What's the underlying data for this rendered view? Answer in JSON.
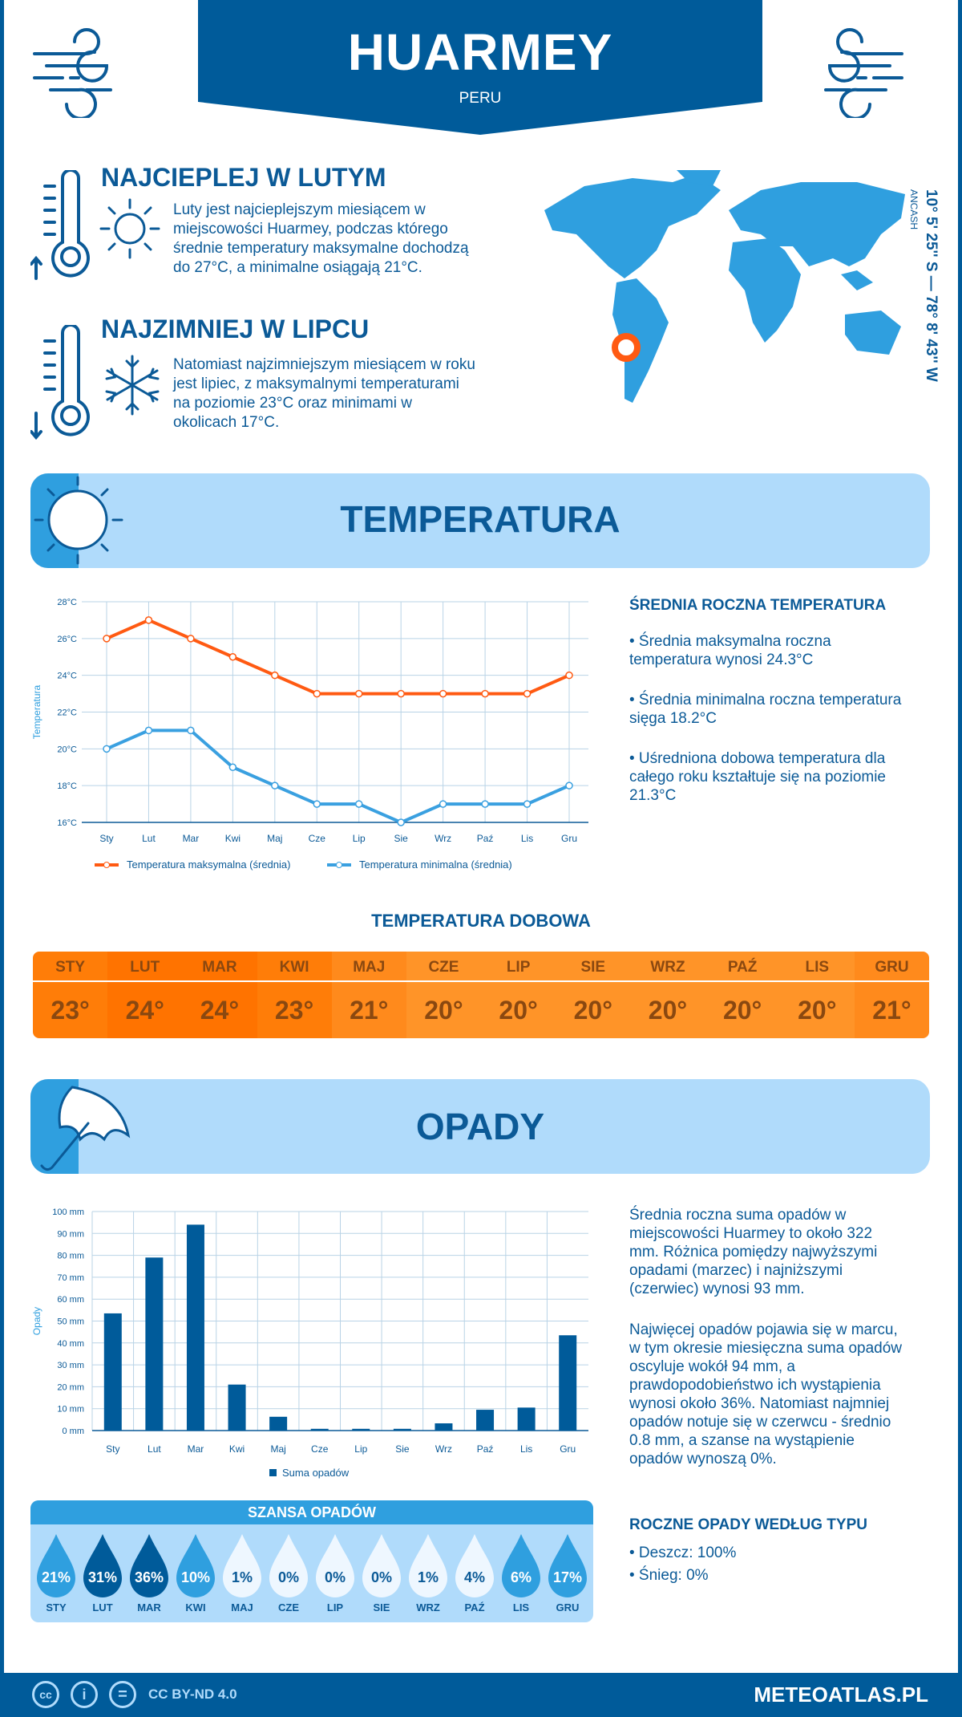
{
  "header": {
    "title": "HUARMEY",
    "country": "PERU"
  },
  "coordinates": {
    "text": "10° 5' 25'' S — 78° 8' 43'' W",
    "region": "ANCASH"
  },
  "warmest": {
    "title": "NAJCIEPLEJ W LUTYM",
    "lines": [
      "Luty jest najcieplejszym miesiącem w",
      "miejscowości Huarmey, podczas którego",
      "średnie temperatury maksymalne dochodzą",
      "do 27°C, a minimalne osiągają 21°C."
    ]
  },
  "coldest": {
    "title": "NAJZIMNIEJ W LIPCU",
    "lines": [
      "Natomiast najzimniejszym miesiącem w roku",
      "jest lipiec, z maksymalnymi temperaturami",
      "na poziomie 23°C oraz minimami w",
      "okolicach 17°C."
    ]
  },
  "temperature_section": {
    "title": "TEMPERATURA",
    "summary_title": "ŚREDNIA ROCZNA TEMPERATURA",
    "bullets": [
      [
        "• Średnia maksymalna roczna",
        "temperatura wynosi 24.3°C"
      ],
      [
        "• Średnia minimalna roczna temperatura",
        "sięga 18.2°C"
      ],
      [
        "• Uśredniona dobowa temperatura dla",
        "całego roku kształtuje się na poziomie",
        "21.3°C"
      ]
    ]
  },
  "daily": {
    "title": "TEMPERATURA DOBOWA",
    "months": [
      "STY",
      "LUT",
      "MAR",
      "KWI",
      "MAJ",
      "CZE",
      "LIP",
      "SIE",
      "WRZ",
      "PAŹ",
      "LIS",
      "GRU"
    ],
    "values": [
      "23°",
      "24°",
      "24°",
      "23°",
      "21°",
      "20°",
      "20°",
      "20°",
      "20°",
      "20°",
      "20°",
      "21°"
    ],
    "temps": [
      23,
      24,
      24,
      23,
      21,
      20,
      20,
      20,
      20,
      20,
      20,
      21
    ]
  },
  "precip_section": {
    "title": "OPADY",
    "para1": [
      "Średnia roczna suma opadów w",
      "miejscowości Huarmey to około 322",
      "mm. Różnica pomiędzy najwyższymi",
      "opadami (marzec) i najniższymi",
      "(czerwiec) wynosi 93 mm."
    ],
    "para2": [
      "Najwięcej opadów pojawia się w marcu,",
      "w tym okresie miesięczna suma opadów",
      "oscyluje wokół 94 mm, a",
      "prawdopodobieństwo ich wystąpienia",
      "wynosi około 36%. Natomiast najmniej",
      "opadów notuje się w czerwcu - średnio",
      "0.8 mm, a szanse na wystąpienie",
      "opadów wynoszą 0%."
    ],
    "type_title": "ROCZNE OPADY WEDŁUG TYPU",
    "types": [
      "• Deszcz: 100%",
      "• Śnieg: 0%"
    ]
  },
  "chance": {
    "title": "SZANSA OPADÓW",
    "months": [
      "STY",
      "LUT",
      "MAR",
      "KWI",
      "MAJ",
      "CZE",
      "LIP",
      "SIE",
      "WRZ",
      "PAŹ",
      "LIS",
      "GRU"
    ],
    "labels": [
      "21%",
      "31%",
      "36%",
      "10%",
      "1%",
      "0%",
      "0%",
      "0%",
      "1%",
      "4%",
      "6%",
      "17%"
    ],
    "values": [
      21,
      31,
      36,
      10,
      1,
      0,
      0,
      0,
      1,
      4,
      6,
      17
    ]
  },
  "colors": {
    "dark": "#005b9a",
    "accent": "#2f9fdf",
    "light": "#b0dbfb",
    "max": "#ff5a12",
    "min": "#3aa0e0"
  },
  "chart_data": [
    {
      "type": "line",
      "categories": [
        "Sty",
        "Lut",
        "Mar",
        "Kwi",
        "Maj",
        "Cze",
        "Lip",
        "Sie",
        "Wrz",
        "Paź",
        "Lis",
        "Gru"
      ],
      "series": [
        {
          "name": "Temperatura maksymalna (średnia)",
          "values": [
            26,
            27,
            26,
            25,
            24,
            23,
            23,
            23,
            23,
            23,
            23,
            24
          ],
          "color": "#ff5a12"
        },
        {
          "name": "Temperatura minimalna (średnia)",
          "values": [
            20,
            21,
            21,
            19,
            18,
            17,
            17,
            16,
            17,
            17,
            17,
            18
          ],
          "color": "#3aa0e0"
        }
      ],
      "ylabel": "Temperatura",
      "ylim": [
        16,
        28
      ],
      "yticks": [
        "16°C",
        "18°C",
        "20°C",
        "22°C",
        "24°C",
        "26°C",
        "28°C"
      ],
      "grid": true,
      "legend": "bottom"
    },
    {
      "type": "bar",
      "categories": [
        "Sty",
        "Lut",
        "Mar",
        "Kwi",
        "Maj",
        "Cze",
        "Lip",
        "Sie",
        "Wrz",
        "Paź",
        "Lis",
        "Gru"
      ],
      "series": [
        {
          "name": "Suma opadów",
          "values": [
            53.5,
            79,
            94,
            21,
            6.3,
            0.8,
            0.8,
            0.8,
            3.3,
            9.5,
            10.5,
            43.5
          ],
          "color": "#005b9a"
        }
      ],
      "ylabel": "Opady",
      "ylim": [
        0,
        100
      ],
      "yticks": [
        "0 mm",
        "10 mm",
        "20 mm",
        "30 mm",
        "40 mm",
        "50 mm",
        "60 mm",
        "70 mm",
        "80 mm",
        "90 mm",
        "100 mm"
      ],
      "grid": true,
      "legend": "bottom"
    }
  ],
  "footer": {
    "license": "CC BY-ND 4.0",
    "site": "METEOATLAS.PL",
    "cc_icon": "cc",
    "by_icon": "i",
    "nd_icon": "="
  }
}
